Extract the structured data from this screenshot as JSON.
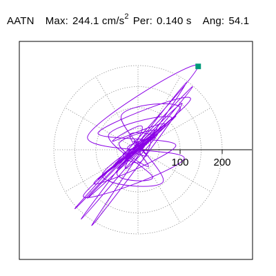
{
  "header": {
    "station": "AATN",
    "max_label": "Max:",
    "max_value": "244.1 cm/s",
    "max_exp": "2",
    "per_label": "Per:",
    "per_value": "0.140 s",
    "ang_label": "Ang:",
    "ang_value": "54.1"
  },
  "colors": {
    "trace": "#8a00e6",
    "marker": "#009a7a",
    "grid": "#808080",
    "axis": "#000000"
  },
  "chart_data": {
    "type": "scatter",
    "title": "AATN  Max: 244.1 cm/s^2  Per: 0.140 s  Ang: 54.1",
    "coordinate_system": "polar",
    "radial_unit": "cm/s^2",
    "radial_ticks": [
      100,
      200
    ],
    "range_rings": [
      50,
      100,
      150,
      200
    ],
    "spoke_angles_deg": [
      0,
      30,
      60,
      90,
      120,
      150,
      180,
      210,
      240,
      270,
      300,
      330
    ],
    "grid": true,
    "peak": {
      "value": 244.1,
      "angle_deg": 54.1,
      "period_s": 0.14,
      "x": 143,
      "y": 198
    },
    "series": [
      {
        "values": [
          [
            0,
            0
          ],
          [
            15,
            8
          ],
          [
            -10,
            20
          ],
          [
            20,
            -15
          ],
          [
            -25,
            5
          ],
          [
            30,
            25
          ],
          [
            5,
            -30
          ],
          [
            -35,
            -10
          ],
          [
            40,
            30
          ],
          [
            -20,
            35
          ],
          [
            25,
            -40
          ],
          [
            -45,
            15
          ],
          [
            50,
            45
          ],
          [
            -30,
            -45
          ],
          [
            10,
            55
          ],
          [
            -60,
            20
          ],
          [
            65,
            60
          ],
          [
            -50,
            -55
          ],
          [
            35,
            -65
          ],
          [
            -70,
            35
          ],
          [
            80,
            75
          ],
          [
            -85,
            -60
          ],
          [
            60,
            -75
          ],
          [
            -40,
            80
          ],
          [
            100,
            95
          ],
          [
            -105,
            -80
          ],
          [
            90,
            10
          ],
          [
            -95,
            40
          ],
          [
            125,
            120
          ],
          [
            -130,
            -110
          ],
          [
            110,
            -20
          ],
          [
            -120,
            30
          ],
          [
            143,
            198
          ],
          [
            -150,
            -140
          ],
          [
            130,
            150
          ],
          [
            -135,
            -165
          ],
          [
            115,
            160
          ],
          [
            -110,
            -180
          ],
          [
            105,
            110
          ],
          [
            -120,
            -115
          ],
          [
            90,
            80
          ],
          [
            -95,
            -70
          ],
          [
            70,
            60
          ],
          [
            -75,
            -55
          ],
          [
            55,
            45
          ],
          [
            -60,
            -40
          ],
          [
            45,
            50
          ],
          [
            -50,
            -45
          ],
          [
            35,
            30
          ],
          [
            -40,
            -35
          ],
          [
            25,
            20
          ],
          [
            -30,
            -25
          ],
          [
            20,
            15
          ],
          [
            -15,
            -10
          ],
          [
            10,
            5
          ],
          [
            -5,
            -3
          ],
          [
            0,
            0
          ]
        ]
      }
    ]
  }
}
